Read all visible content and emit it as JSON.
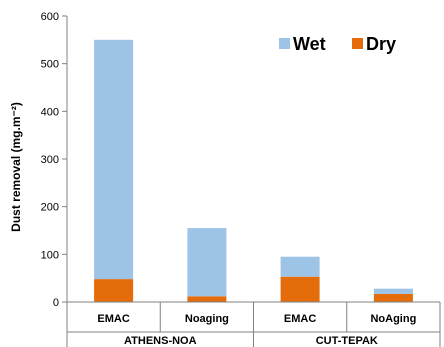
{
  "chart_data": {
    "type": "bar",
    "stacked": true,
    "categories": [
      "EMAC",
      "Noaging",
      "EMAC",
      "NoAging"
    ],
    "groups": [
      {
        "label": "ATHENS-NOA",
        "categories": [
          "EMAC",
          "Noaging"
        ]
      },
      {
        "label": "CUT-TEPAK",
        "categories": [
          "EMAC",
          "NoAging"
        ]
      }
    ],
    "series": [
      {
        "name": "Dry",
        "color": "#E46C0A",
        "values": [
          48,
          12,
          53,
          17
        ]
      },
      {
        "name": "Wet",
        "color": "#9DC3E6",
        "values": [
          502,
          143,
          42,
          11
        ]
      }
    ],
    "title": "",
    "xlabel": "",
    "ylabel": "Dust removal (mg.m⁻²)",
    "ylim": [
      0,
      600
    ],
    "yticks": [
      "0",
      "100",
      "200",
      "300",
      "400",
      "500",
      "600"
    ],
    "grid": false,
    "legend": {
      "position": "top-right",
      "entries": [
        {
          "label": "Wet",
          "color": "#9DC3E6"
        },
        {
          "label": "Dry",
          "color": "#E46C0A"
        }
      ]
    }
  }
}
